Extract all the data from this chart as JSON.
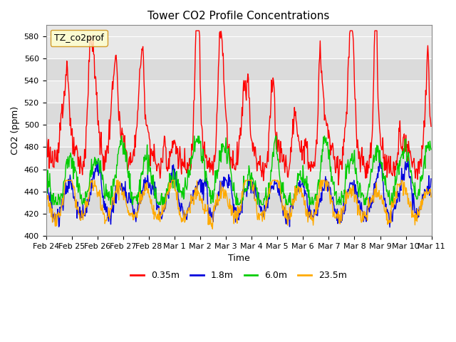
{
  "title": "Tower CO2 Profile Concentrations",
  "xlabel": "Time",
  "ylabel": "CO2 (ppm)",
  "ylim": [
    400,
    590
  ],
  "yticks": [
    400,
    420,
    440,
    460,
    480,
    500,
    520,
    540,
    560,
    580
  ],
  "legend_label": "TZ_co2prof",
  "series_labels": [
    "0.35m",
    "1.8m",
    "6.0m",
    "23.5m"
  ],
  "series_colors": [
    "#ff0000",
    "#0000dd",
    "#00cc00",
    "#ffaa00"
  ],
  "line_width": 1.0,
  "bg_color": "#e8e8e8",
  "fig_bg": "#ffffff",
  "n_days": 15,
  "points_per_day": 48,
  "xtick_labels": [
    "Feb 24",
    "Feb 25",
    "Feb 26",
    "Feb 27",
    "Feb 28",
    "Mar 1",
    "Mar 2",
    "Mar 3",
    "Mar 4",
    "Mar 5",
    "Mar 6",
    "Mar 7",
    "Mar 8",
    "Mar 9",
    "Mar 10",
    "Mar 11"
  ],
  "xtick_positions": [
    0,
    48,
    96,
    144,
    192,
    240,
    288,
    336,
    384,
    432,
    480,
    528,
    576,
    624,
    672,
    720
  ]
}
